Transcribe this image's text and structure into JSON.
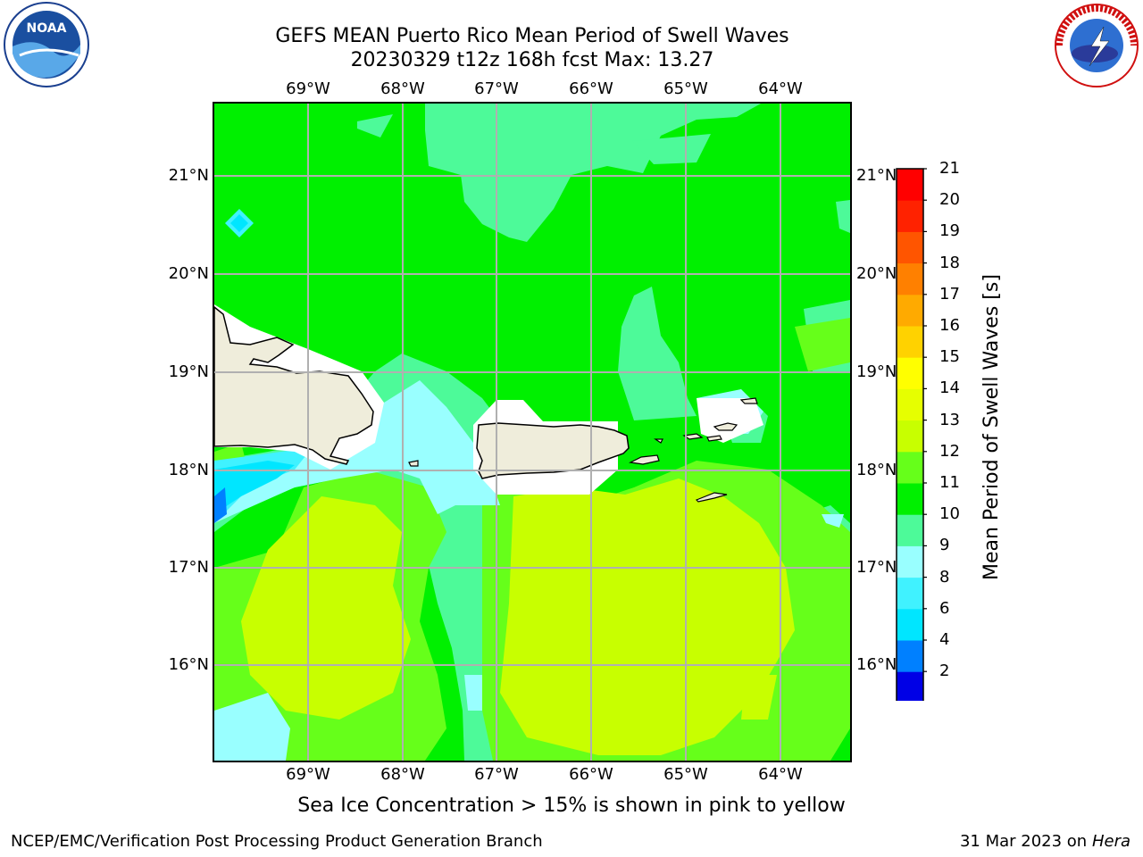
{
  "title_line1": "GEFS MEAN Puerto Rico Mean Period of Swell Waves",
  "title_line2": "20230329 t12z 168h fcst   Max: 13.27",
  "lon_ticks": [
    "69°W",
    "68°W",
    "67°W",
    "66°W",
    "65°W",
    "64°W"
  ],
  "lat_ticks": [
    "21°N",
    "20°N",
    "19°N",
    "18°N",
    "17°N",
    "16°N"
  ],
  "colorbar": {
    "label": "Mean Period of Swell Waves [s]",
    "ticks": [
      "21",
      "20",
      "19",
      "18",
      "17",
      "16",
      "15",
      "14",
      "13",
      "12",
      "11",
      "10",
      "9",
      "8",
      "6",
      "4",
      "2"
    ],
    "colors": [
      "#0000e6",
      "#0080ff",
      "#00e6ff",
      "#40f2ff",
      "#99ffff",
      "#4dfa99",
      "#00f000",
      "#66ff1a",
      "#c8ff00",
      "#e6ff00",
      "#ffff00",
      "#ffd200",
      "#ffaa00",
      "#ff8000",
      "#ff5500",
      "#ff2200",
      "#ff0000"
    ]
  },
  "footer_note": "Sea Ice Concentration > 15% is shown in pink to yellow",
  "credit_left": "NCEP/EMC/Verification Post Processing Product Generation Branch",
  "credit_right_date": "31 Mar 2023 on",
  "credit_right_machine": "Hera",
  "logos": {
    "left": "noaa-logo",
    "right": "national-weather-service-logo",
    "left_text": "NOAA",
    "right_text": "NATIONAL WEATHER SERVICE"
  }
}
